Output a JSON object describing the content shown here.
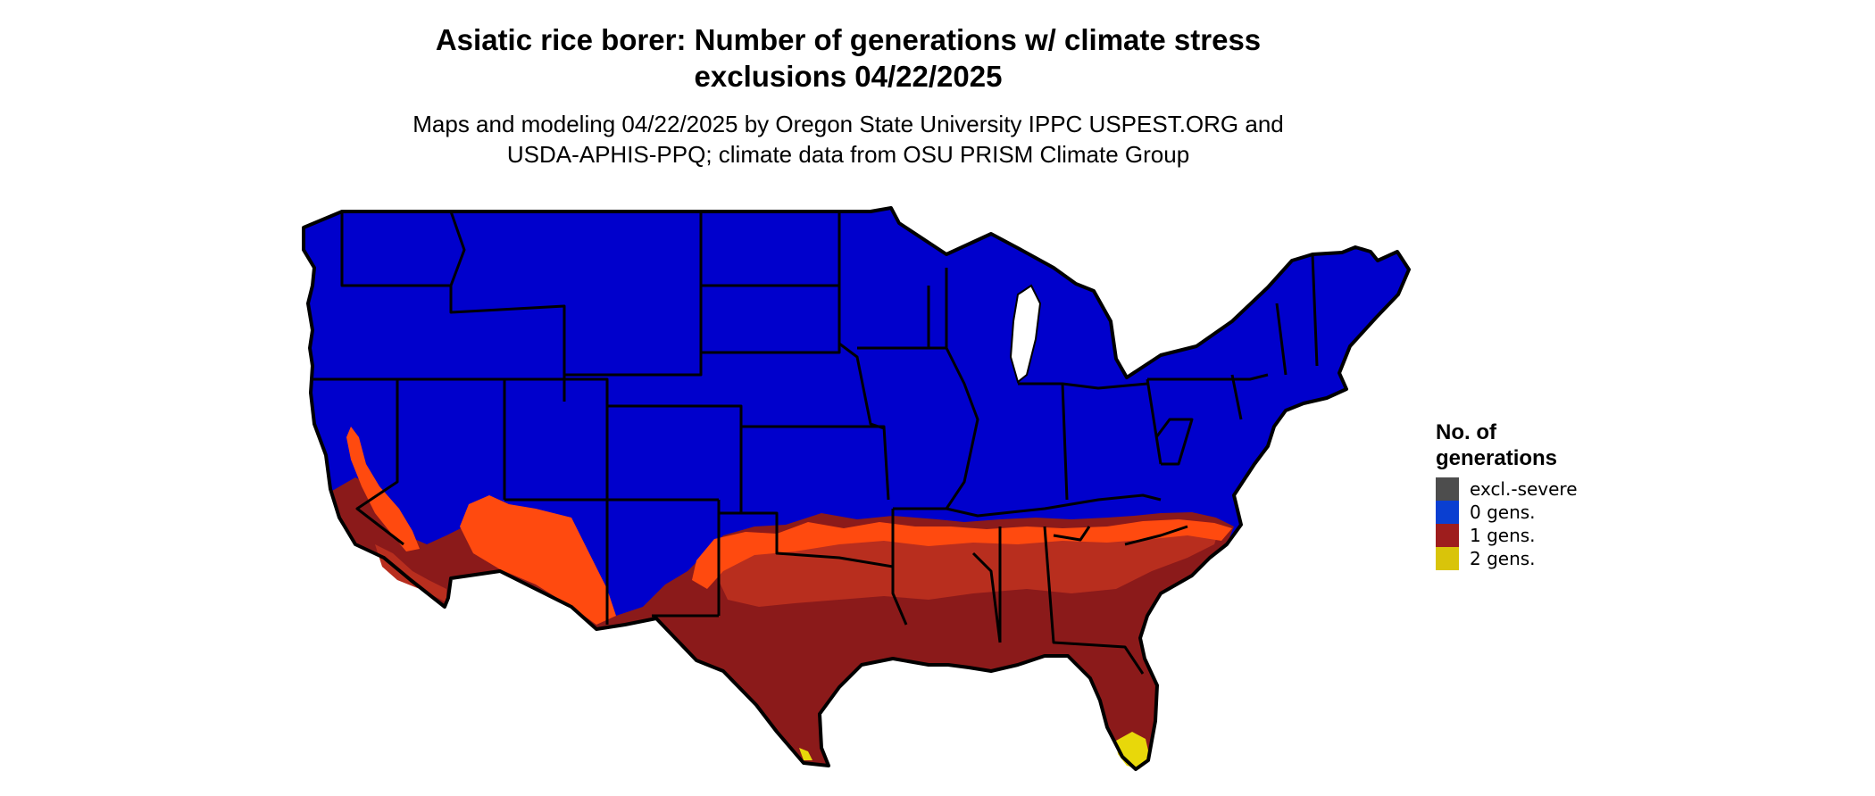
{
  "title_line1": "Asiatic rice borer: Number of generations w/ climate stress",
  "title_line2": "exclusions 04/22/2025",
  "subtitle_line1": "Maps and modeling 04/22/2025 by Oregon State University IPPC USPEST.ORG and",
  "subtitle_line2": "USDA-APHIS-PPQ; climate data from OSU PRISM Climate Group",
  "legend": {
    "title_line1": "No. of",
    "title_line2": "generations",
    "items": [
      {
        "label": "excl.-severe",
        "color": "#4d4d4d"
      },
      {
        "label": "0 gens.",
        "color": "#0a3fd1"
      },
      {
        "label": "1 gens.",
        "color": "#9e1d1d"
      },
      {
        "label": "2 gens.",
        "color": "#d9c40a"
      }
    ]
  },
  "map_colors": {
    "zero_gens": "#0000cc",
    "one_gen_dark": "#8b1a1a",
    "one_gen_mid": "#b82e1e",
    "one_gen_light": "#ff4a0f",
    "two_gens": "#e8d80a",
    "border": "#000000"
  }
}
